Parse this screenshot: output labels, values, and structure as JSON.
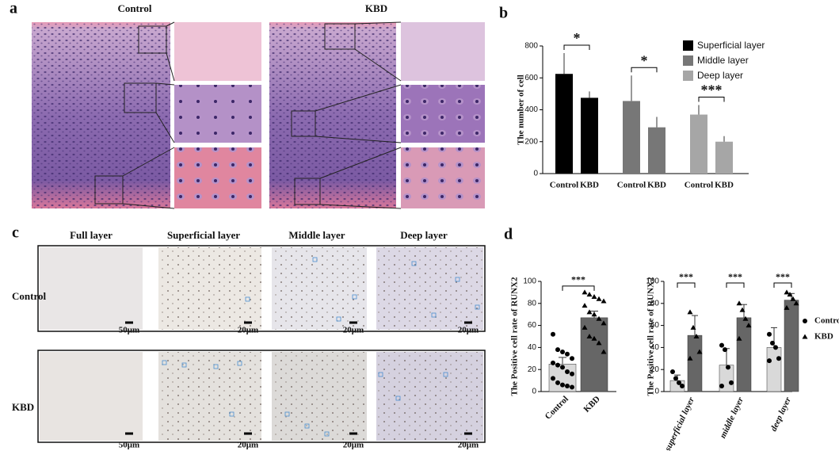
{
  "panel_a": {
    "label": "a",
    "columns": [
      "Control",
      "KBD"
    ]
  },
  "panel_b": {
    "label": "b"
  },
  "panel_c": {
    "label": "c",
    "columns": [
      "Full layer",
      "Superficial layer",
      "Middle layer",
      "Deep layer"
    ],
    "rows": [
      "Control",
      "KBD"
    ],
    "scale_bars": [
      "50μm",
      "20μm",
      "20μm",
      "20μm"
    ]
  },
  "panel_d": {
    "label": "d"
  },
  "chart_data": [
    {
      "type": "bar",
      "ylabel": "The number of cell",
      "categories": [
        "Control",
        "KBD"
      ],
      "series": [
        {
          "name": "Superficial layer",
          "color": "#000000",
          "values": [
            625,
            475
          ],
          "errors": [
            130,
            40
          ]
        },
        {
          "name": "Middle layer",
          "color": "#777777",
          "values": [
            455,
            290
          ],
          "errors": [
            160,
            65
          ]
        },
        {
          "name": "Deep layer",
          "color": "#a6a6a6",
          "values": [
            370,
            200
          ],
          "errors": [
            60,
            35
          ]
        }
      ],
      "significance": [
        "*",
        "*",
        "***"
      ],
      "ylim": [
        0,
        800
      ],
      "yticks": [
        0,
        200,
        400,
        600,
        800
      ],
      "legend": "top-right"
    },
    {
      "type": "bar",
      "ylabel": "The Positive cell rate of RUNX2",
      "categories": [
        "Control",
        "KBD"
      ],
      "values": [
        25,
        67
      ],
      "errors": [
        6,
        6
      ],
      "colors": [
        "#d9d9d9",
        "#666666"
      ],
      "markers": [
        "circle",
        "triangle"
      ],
      "points": [
        [
          52,
          38,
          36,
          34,
          30,
          26,
          24,
          22,
          18,
          16,
          12,
          8,
          6,
          5,
          4
        ],
        [
          90,
          88,
          86,
          84,
          82,
          78,
          72,
          70,
          66,
          62,
          58,
          50,
          48,
          44,
          36
        ]
      ],
      "significance": [
        "***"
      ],
      "ylim": [
        0,
        100
      ],
      "yticks": [
        0,
        20,
        40,
        60,
        80,
        100
      ]
    },
    {
      "type": "bar",
      "ylabel": "The Positive cell rate of RUNX2",
      "categories": [
        "superficial layer",
        "middle layer",
        "deep layer"
      ],
      "series": [
        {
          "name": "Control",
          "color": "#d9d9d9",
          "marker": "circle",
          "values": [
            10,
            24,
            40
          ],
          "errors": [
            5,
            15,
            18
          ],
          "points": [
            [
              18,
              12,
              8,
              5
            ],
            [
              42,
              38,
              22,
              8,
              5
            ],
            [
              52,
              44,
              40,
              30,
              28
            ]
          ]
        },
        {
          "name": "KBD",
          "color": "#666666",
          "marker": "triangle",
          "values": [
            51,
            67,
            83
          ],
          "errors": [
            18,
            12,
            6
          ],
          "points": [
            [
              72,
              58,
              50,
              36,
              30
            ],
            [
              80,
              74,
              66,
              60,
              48
            ],
            [
              90,
              88,
              84,
              80,
              76
            ]
          ]
        }
      ],
      "significance": [
        "***",
        "***",
        "***"
      ],
      "ylim": [
        0,
        100
      ],
      "yticks": [
        0,
        20,
        40,
        60,
        80,
        100
      ],
      "legend": "right"
    }
  ]
}
